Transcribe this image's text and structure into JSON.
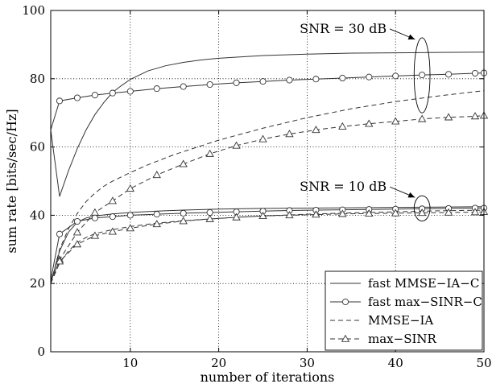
{
  "chart_data": {
    "type": "line",
    "xlabel": "number of iterations",
    "ylabel": "sum rate [bits/sec/Hz]",
    "xlim": [
      1,
      50
    ],
    "ylim": [
      0,
      100
    ],
    "xticks": [
      10,
      20,
      30,
      40,
      50
    ],
    "yticks": [
      0,
      20,
      40,
      60,
      80,
      100
    ],
    "grid": "dotted",
    "legend_position": "bottom-right",
    "annotations": [
      {
        "text": "SNR = 30 dB",
        "x": 43,
        "y": 81,
        "rx": 0.9,
        "ry": 11
      },
      {
        "text": "SNR = 10 dB",
        "x": 43,
        "y": 42,
        "rx": 0.9,
        "ry": 3.7
      }
    ],
    "series": [
      {
        "name": "fast MMSE−IA−C",
        "group": "SNR = 30 dB",
        "dash": "solid",
        "marker": "none",
        "x": [
          1,
          2,
          3,
          4,
          5,
          6,
          7,
          8,
          9,
          10,
          12,
          14,
          16,
          18,
          20,
          25,
          30,
          35,
          40,
          45,
          50
        ],
        "y": [
          65,
          45.5,
          53,
          59.5,
          65,
          69.5,
          73,
          76,
          78,
          79.8,
          82.3,
          83.8,
          84.8,
          85.5,
          86,
          86.8,
          87.2,
          87.5,
          87.6,
          87.7,
          87.8
        ]
      },
      {
        "name": "fast max−SINR−C",
        "group": "SNR = 30 dB",
        "dash": "solid",
        "marker": "circle",
        "x": [
          1,
          2,
          4,
          6,
          8,
          10,
          13,
          16,
          19,
          22,
          25,
          28,
          31,
          34,
          37,
          40,
          43,
          46,
          49,
          50
        ],
        "y": [
          65,
          73.5,
          74.4,
          75.2,
          75.8,
          76.3,
          77.1,
          77.7,
          78.3,
          78.8,
          79.2,
          79.6,
          79.9,
          80.2,
          80.5,
          80.8,
          81.1,
          81.3,
          81.6,
          81.7
        ]
      },
      {
        "name": "MMSE−IA",
        "group": "SNR = 30 dB",
        "dash": "dashed",
        "marker": "none",
        "x": [
          1,
          2,
          3,
          4,
          5,
          6,
          7,
          8,
          10,
          12,
          15,
          20,
          25,
          30,
          35,
          40,
          45,
          50
        ],
        "y": [
          20,
          30,
          36,
          40.5,
          44,
          46.5,
          48.5,
          50,
          52.5,
          54.8,
          57.8,
          62,
          65.5,
          68.6,
          71.2,
          73.3,
          75,
          76.5
        ]
      },
      {
        "name": "max−SINR",
        "group": "SNR = 30 dB",
        "dash": "dashed",
        "marker": "triangle",
        "x": [
          1,
          2,
          4,
          6,
          8,
          10,
          13,
          16,
          19,
          22,
          25,
          28,
          31,
          34,
          37,
          40,
          43,
          46,
          49,
          50
        ],
        "y": [
          20,
          27,
          35,
          40.8,
          44.2,
          47.8,
          51.8,
          55,
          58,
          60.4,
          62.3,
          63.8,
          65,
          66,
          66.8,
          67.5,
          68.2,
          68.7,
          69,
          69.2
        ]
      },
      {
        "name": "fast MMSE−IA−C",
        "group": "SNR = 10 dB",
        "dash": "solid",
        "marker": "none",
        "x": [
          1,
          2,
          3,
          4,
          5,
          6,
          8,
          10,
          13,
          16,
          20,
          25,
          30,
          35,
          40,
          45,
          50
        ],
        "y": [
          20,
          29.5,
          35,
          38,
          39.2,
          39.8,
          40.4,
          40.8,
          41.2,
          41.5,
          41.8,
          42,
          42.1,
          42.2,
          42.3,
          42.4,
          42.5
        ]
      },
      {
        "name": "fast max−SINR−C",
        "group": "SNR = 10 dB",
        "dash": "solid",
        "marker": "circle",
        "x": [
          1,
          2,
          4,
          6,
          8,
          10,
          13,
          16,
          19,
          22,
          25,
          28,
          31,
          34,
          37,
          40,
          43,
          46,
          49,
          50
        ],
        "y": [
          21,
          34.5,
          38.2,
          39.2,
          39.6,
          40,
          40.3,
          40.6,
          40.8,
          41,
          41.2,
          41.4,
          41.5,
          41.6,
          41.7,
          41.8,
          41.9,
          42,
          42.1,
          42.1
        ]
      },
      {
        "name": "MMSE−IA",
        "group": "SNR = 10 dB",
        "dash": "dashed",
        "marker": "none",
        "x": [
          1,
          2,
          3,
          4,
          5,
          6,
          8,
          10,
          13,
          16,
          20,
          25,
          30,
          35,
          40,
          45,
          50
        ],
        "y": [
          20,
          26,
          29.5,
          32,
          33.5,
          34.6,
          35.8,
          36.7,
          37.7,
          38.4,
          39.1,
          39.8,
          40.3,
          40.7,
          41,
          41.3,
          41.5
        ]
      },
      {
        "name": "max−SINR",
        "group": "SNR = 10 dB",
        "dash": "dashed",
        "marker": "triangle",
        "x": [
          1,
          2,
          4,
          6,
          8,
          10,
          13,
          16,
          19,
          22,
          25,
          28,
          31,
          34,
          37,
          40,
          43,
          46,
          49,
          50
        ],
        "y": [
          21,
          26.5,
          31.5,
          34,
          35.2,
          36.2,
          37.4,
          38.3,
          38.9,
          39.4,
          39.8,
          40,
          40.2,
          40.4,
          40.5,
          40.6,
          40.7,
          40.8,
          40.9,
          41
        ]
      }
    ],
    "legend": [
      {
        "label": "fast MMSE−IA−C",
        "dash": "solid",
        "marker": "none"
      },
      {
        "label": "fast max−SINR−C",
        "dash": "solid",
        "marker": "circle"
      },
      {
        "label": "MMSE−IA",
        "dash": "dashed",
        "marker": "none"
      },
      {
        "label": "max−SINR",
        "dash": "dashed",
        "marker": "triangle"
      }
    ]
  }
}
